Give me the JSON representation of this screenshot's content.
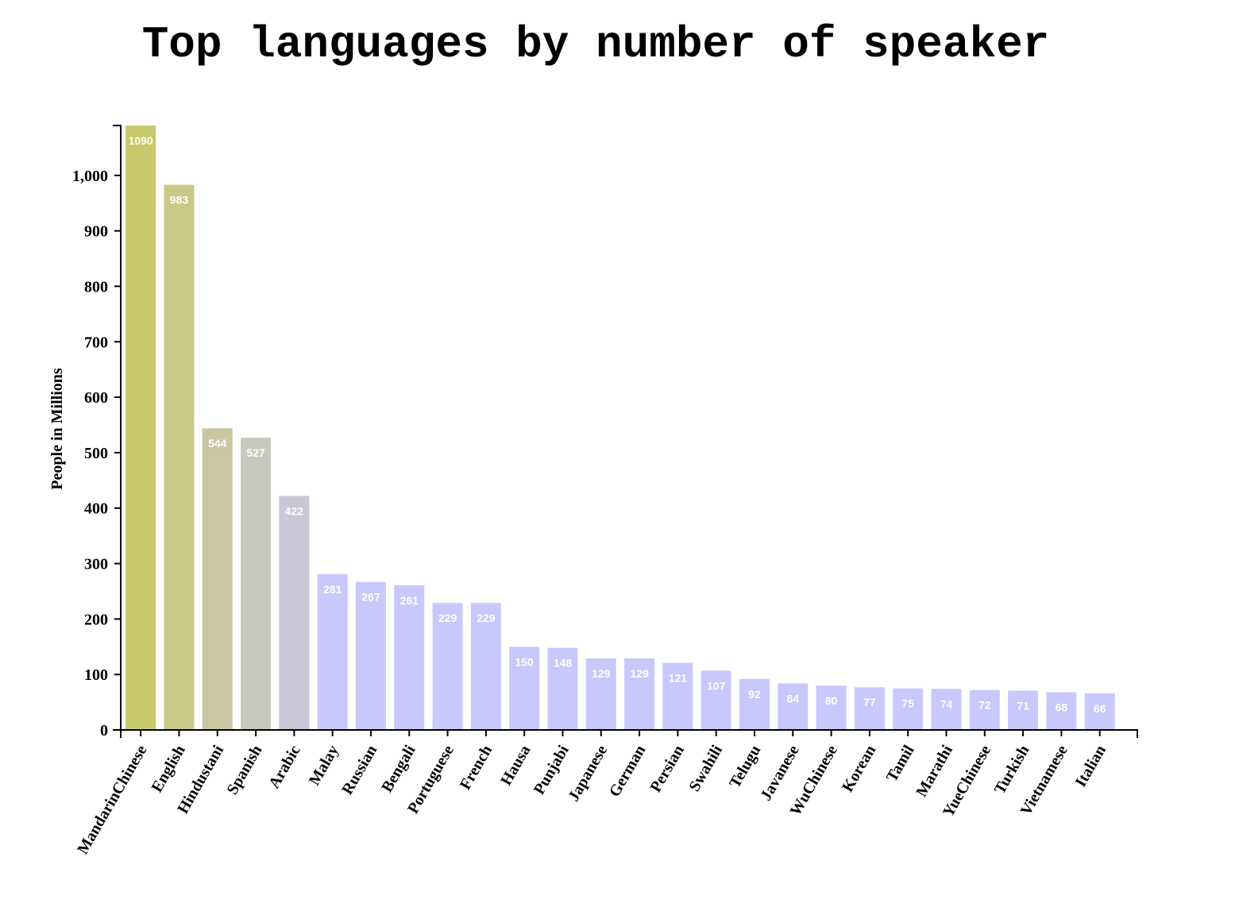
{
  "chart_data": {
    "type": "bar",
    "title": "Top languages by number of speaker",
    "xlabel": "",
    "ylabel": "People in Millions",
    "ylim": [
      0,
      1090
    ],
    "yticks": [
      0,
      100,
      200,
      300,
      400,
      500,
      600,
      700,
      800,
      900,
      1000
    ],
    "ytick_labels": [
      "0",
      "100",
      "200",
      "300",
      "400",
      "500",
      "600",
      "700",
      "800",
      "900",
      "1,000"
    ],
    "grid": false,
    "categories": [
      "MandarinChinese",
      "English",
      "Hindustani",
      "Spanish",
      "Arabic",
      "Malay",
      "Russian",
      "Bengali",
      "Portuguese",
      "French",
      "Hausa",
      "Punjabi",
      "Japanese",
      "German",
      "Persian",
      "Swahili",
      "Telugu",
      "Javanese",
      "WuChinese",
      "Korean",
      "Tamil",
      "Marathi",
      "YueChinese",
      "Turkish",
      "Vietnamese",
      "Italian"
    ],
    "values": [
      1090,
      983,
      544,
      527,
      422,
      281,
      267,
      261,
      229,
      229,
      150,
      148,
      129,
      129,
      121,
      107,
      92,
      84,
      80,
      77,
      75,
      74,
      72,
      71,
      68,
      66
    ],
    "colors": [
      "#c9c86a",
      "#c9c886",
      "#c9c6a2",
      "#c9c8bd",
      "#c8c8d9",
      "#c8c8fd",
      "#c8c8fd",
      "#c8c8fd",
      "#c8c8fd",
      "#c8c8fd",
      "#c8c8fd",
      "#c8c8fd",
      "#c8c8fd",
      "#c8c8fd",
      "#c8c8fd",
      "#c8c8fd",
      "#c8c8fd",
      "#c8c8fd",
      "#c8c8fd",
      "#c8c8fd",
      "#c8c8fd",
      "#c8c8fd",
      "#c8c8fd",
      "#c8c8fd",
      "#c8c8fd",
      "#c8c8fd"
    ]
  }
}
